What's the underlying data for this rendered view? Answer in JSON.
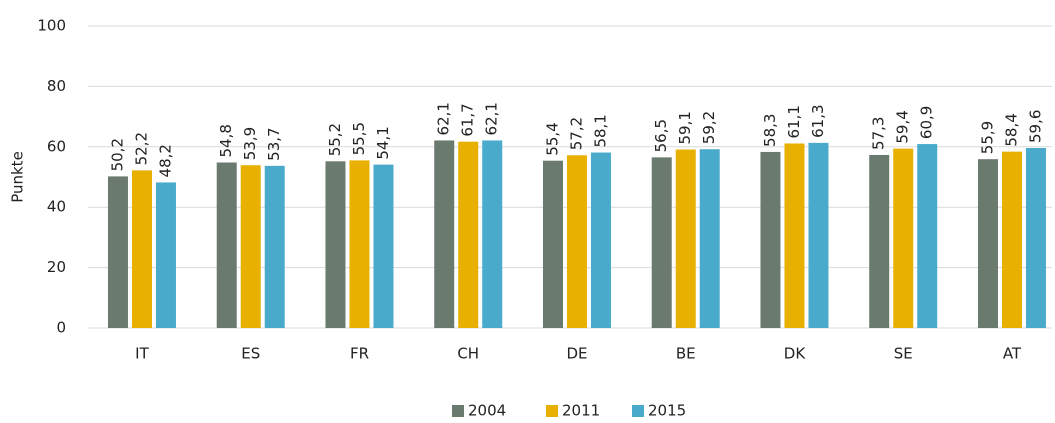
{
  "chart_data": {
    "type": "bar",
    "y_label": "Punkte",
    "categories": [
      "IT",
      "ES",
      "FR",
      "CH",
      "DE",
      "BE",
      "DK",
      "SE",
      "AT"
    ],
    "series": [
      {
        "name": "2004",
        "color": "#6b7a6f",
        "values": [
          50.2,
          54.8,
          55.2,
          62.1,
          55.4,
          56.5,
          58.3,
          57.3,
          55.9
        ],
        "value_labels": [
          "50,2",
          "54,8",
          "55,2",
          "62,1",
          "55,4",
          "56,5",
          "58,3",
          "57,3",
          "55,9"
        ]
      },
      {
        "name": "2011",
        "color": "#e8b000",
        "values": [
          52.2,
          53.9,
          55.5,
          61.7,
          57.2,
          59.1,
          61.1,
          59.4,
          58.4
        ],
        "value_labels": [
          "52,2",
          "53,9",
          "55,5",
          "61,7",
          "57,2",
          "59,1",
          "61,1",
          "59,4",
          "58,4"
        ]
      },
      {
        "name": "2015",
        "color": "#4aaacb",
        "values": [
          48.2,
          53.7,
          54.1,
          62.1,
          58.1,
          59.2,
          61.3,
          60.9,
          59.6
        ],
        "value_labels": [
          "48,2",
          "53,7",
          "54,1",
          "62,1",
          "58,1",
          "59,2",
          "61,3",
          "60,9",
          "59,6"
        ]
      }
    ],
    "ylim": [
      0,
      100
    ],
    "yticks": [
      0,
      20,
      40,
      60,
      80,
      100
    ],
    "grid": true,
    "legend": "bottom"
  }
}
